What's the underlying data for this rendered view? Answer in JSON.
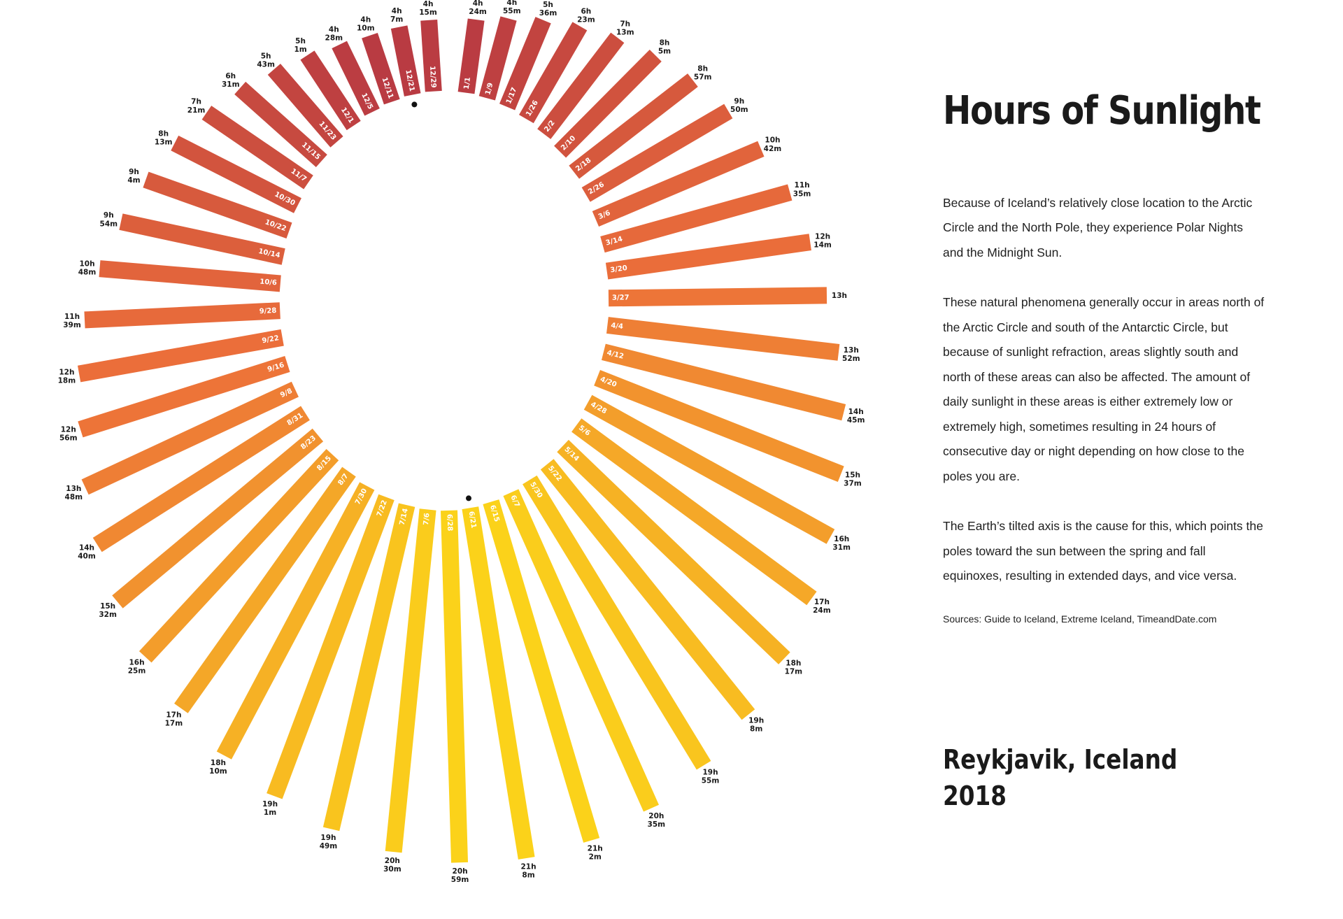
{
  "header": {
    "title": "Hours of Sunlight"
  },
  "text": {
    "p1": "Because of Iceland’s relatively close location to the Arctic Circle and the North Pole, they experience Polar Nights and the Midnight Sun.",
    "p2": "These natural phenomena generally occur in areas north of the Arctic Circle and south of the Antarctic Circle, but because of sunlight refraction, areas slightly south and north of these areas can also be affected. The amount of daily sunlight in these areas is either extremely low or extremely high, sometimes resulting in 24 hours of consecutive day or night depending on how close to the poles you are.",
    "p3": "The Earth’s tilted axis is the cause for this, which points the poles toward the sun between the spring and fall equinoxes, resulting in extended days, and vice versa.",
    "sources": "Sources: Guide to Iceland, Extreme Iceland, TimeandDate.com"
  },
  "location": {
    "city": "Reykjavik, Iceland",
    "year": "2018"
  },
  "colors": {
    "winter": "#b83a42",
    "mid": "#ec6f3a",
    "summer": "#fbd21a",
    "marker": "#111111",
    "text": "#1a1a1a"
  },
  "chart_data": {
    "type": "radial-bar",
    "title": "Hours of Sunlight",
    "markers": [
      "12/21",
      "6/21"
    ],
    "points": [
      {
        "date": "1/1",
        "value": "4h 24m"
      },
      {
        "date": "1/9",
        "value": "4h 55m"
      },
      {
        "date": "1/17",
        "value": "5h 36m"
      },
      {
        "date": "1/26",
        "value": "6h 23m"
      },
      {
        "date": "2/2",
        "value": "7h 13m"
      },
      {
        "date": "2/10",
        "value": "8h 5m"
      },
      {
        "date": "2/18",
        "value": "8h 57m"
      },
      {
        "date": "2/26",
        "value": "9h 50m"
      },
      {
        "date": "3/6",
        "value": "10h 42m"
      },
      {
        "date": "3/14",
        "value": "11h 35m"
      },
      {
        "date": "3/20",
        "value": "12h 14m"
      },
      {
        "date": "3/27",
        "value": "13h"
      },
      {
        "date": "4/4",
        "value": "13h 52m"
      },
      {
        "date": "4/12",
        "value": "14h 45m"
      },
      {
        "date": "4/20",
        "value": "15h 37m"
      },
      {
        "date": "4/28",
        "value": "16h 31m"
      },
      {
        "date": "5/6",
        "value": "17h 24m"
      },
      {
        "date": "5/14",
        "value": "18h 17m"
      },
      {
        "date": "5/22",
        "value": "19h 8m"
      },
      {
        "date": "5/30",
        "value": "19h 55m"
      },
      {
        "date": "6/7",
        "value": "20h 35m"
      },
      {
        "date": "6/15",
        "value": "21h 2m"
      },
      {
        "date": "6/21",
        "value": "21h 8m"
      },
      {
        "date": "6/28",
        "value": "20h 59m"
      },
      {
        "date": "7/6",
        "value": "20h 30m"
      },
      {
        "date": "7/14",
        "value": "19h 49m"
      },
      {
        "date": "7/22",
        "value": "19h 1m"
      },
      {
        "date": "7/30",
        "value": "18h 10m"
      },
      {
        "date": "8/7",
        "value": "17h 17m"
      },
      {
        "date": "8/15",
        "value": "16h 25m"
      },
      {
        "date": "8/23",
        "value": "15h 32m"
      },
      {
        "date": "8/31",
        "value": "14h 40m"
      },
      {
        "date": "9/8",
        "value": "13h 48m"
      },
      {
        "date": "9/16",
        "value": "12h 56m"
      },
      {
        "date": "9/22",
        "value": "12h 18m"
      },
      {
        "date": "9/28",
        "value": "11h 39m"
      },
      {
        "date": "10/6",
        "value": "10h 48m"
      },
      {
        "date": "10/14",
        "value": "9h 54m"
      },
      {
        "date": "10/22",
        "value": "9h 4m"
      },
      {
        "date": "10/30",
        "value": "8h 13m"
      },
      {
        "date": "11/7",
        "value": "7h 21m"
      },
      {
        "date": "11/15",
        "value": "6h 31m"
      },
      {
        "date": "11/23",
        "value": "5h 43m"
      },
      {
        "date": "12/1",
        "value": "5h 1m"
      },
      {
        "date": "12/5",
        "value": "4h 28m"
      },
      {
        "date": "12/11",
        "value": "4h 10m"
      },
      {
        "date": "12/21",
        "value": "4h 7m"
      },
      {
        "date": "12/29",
        "value": "4h 15m"
      }
    ]
  }
}
